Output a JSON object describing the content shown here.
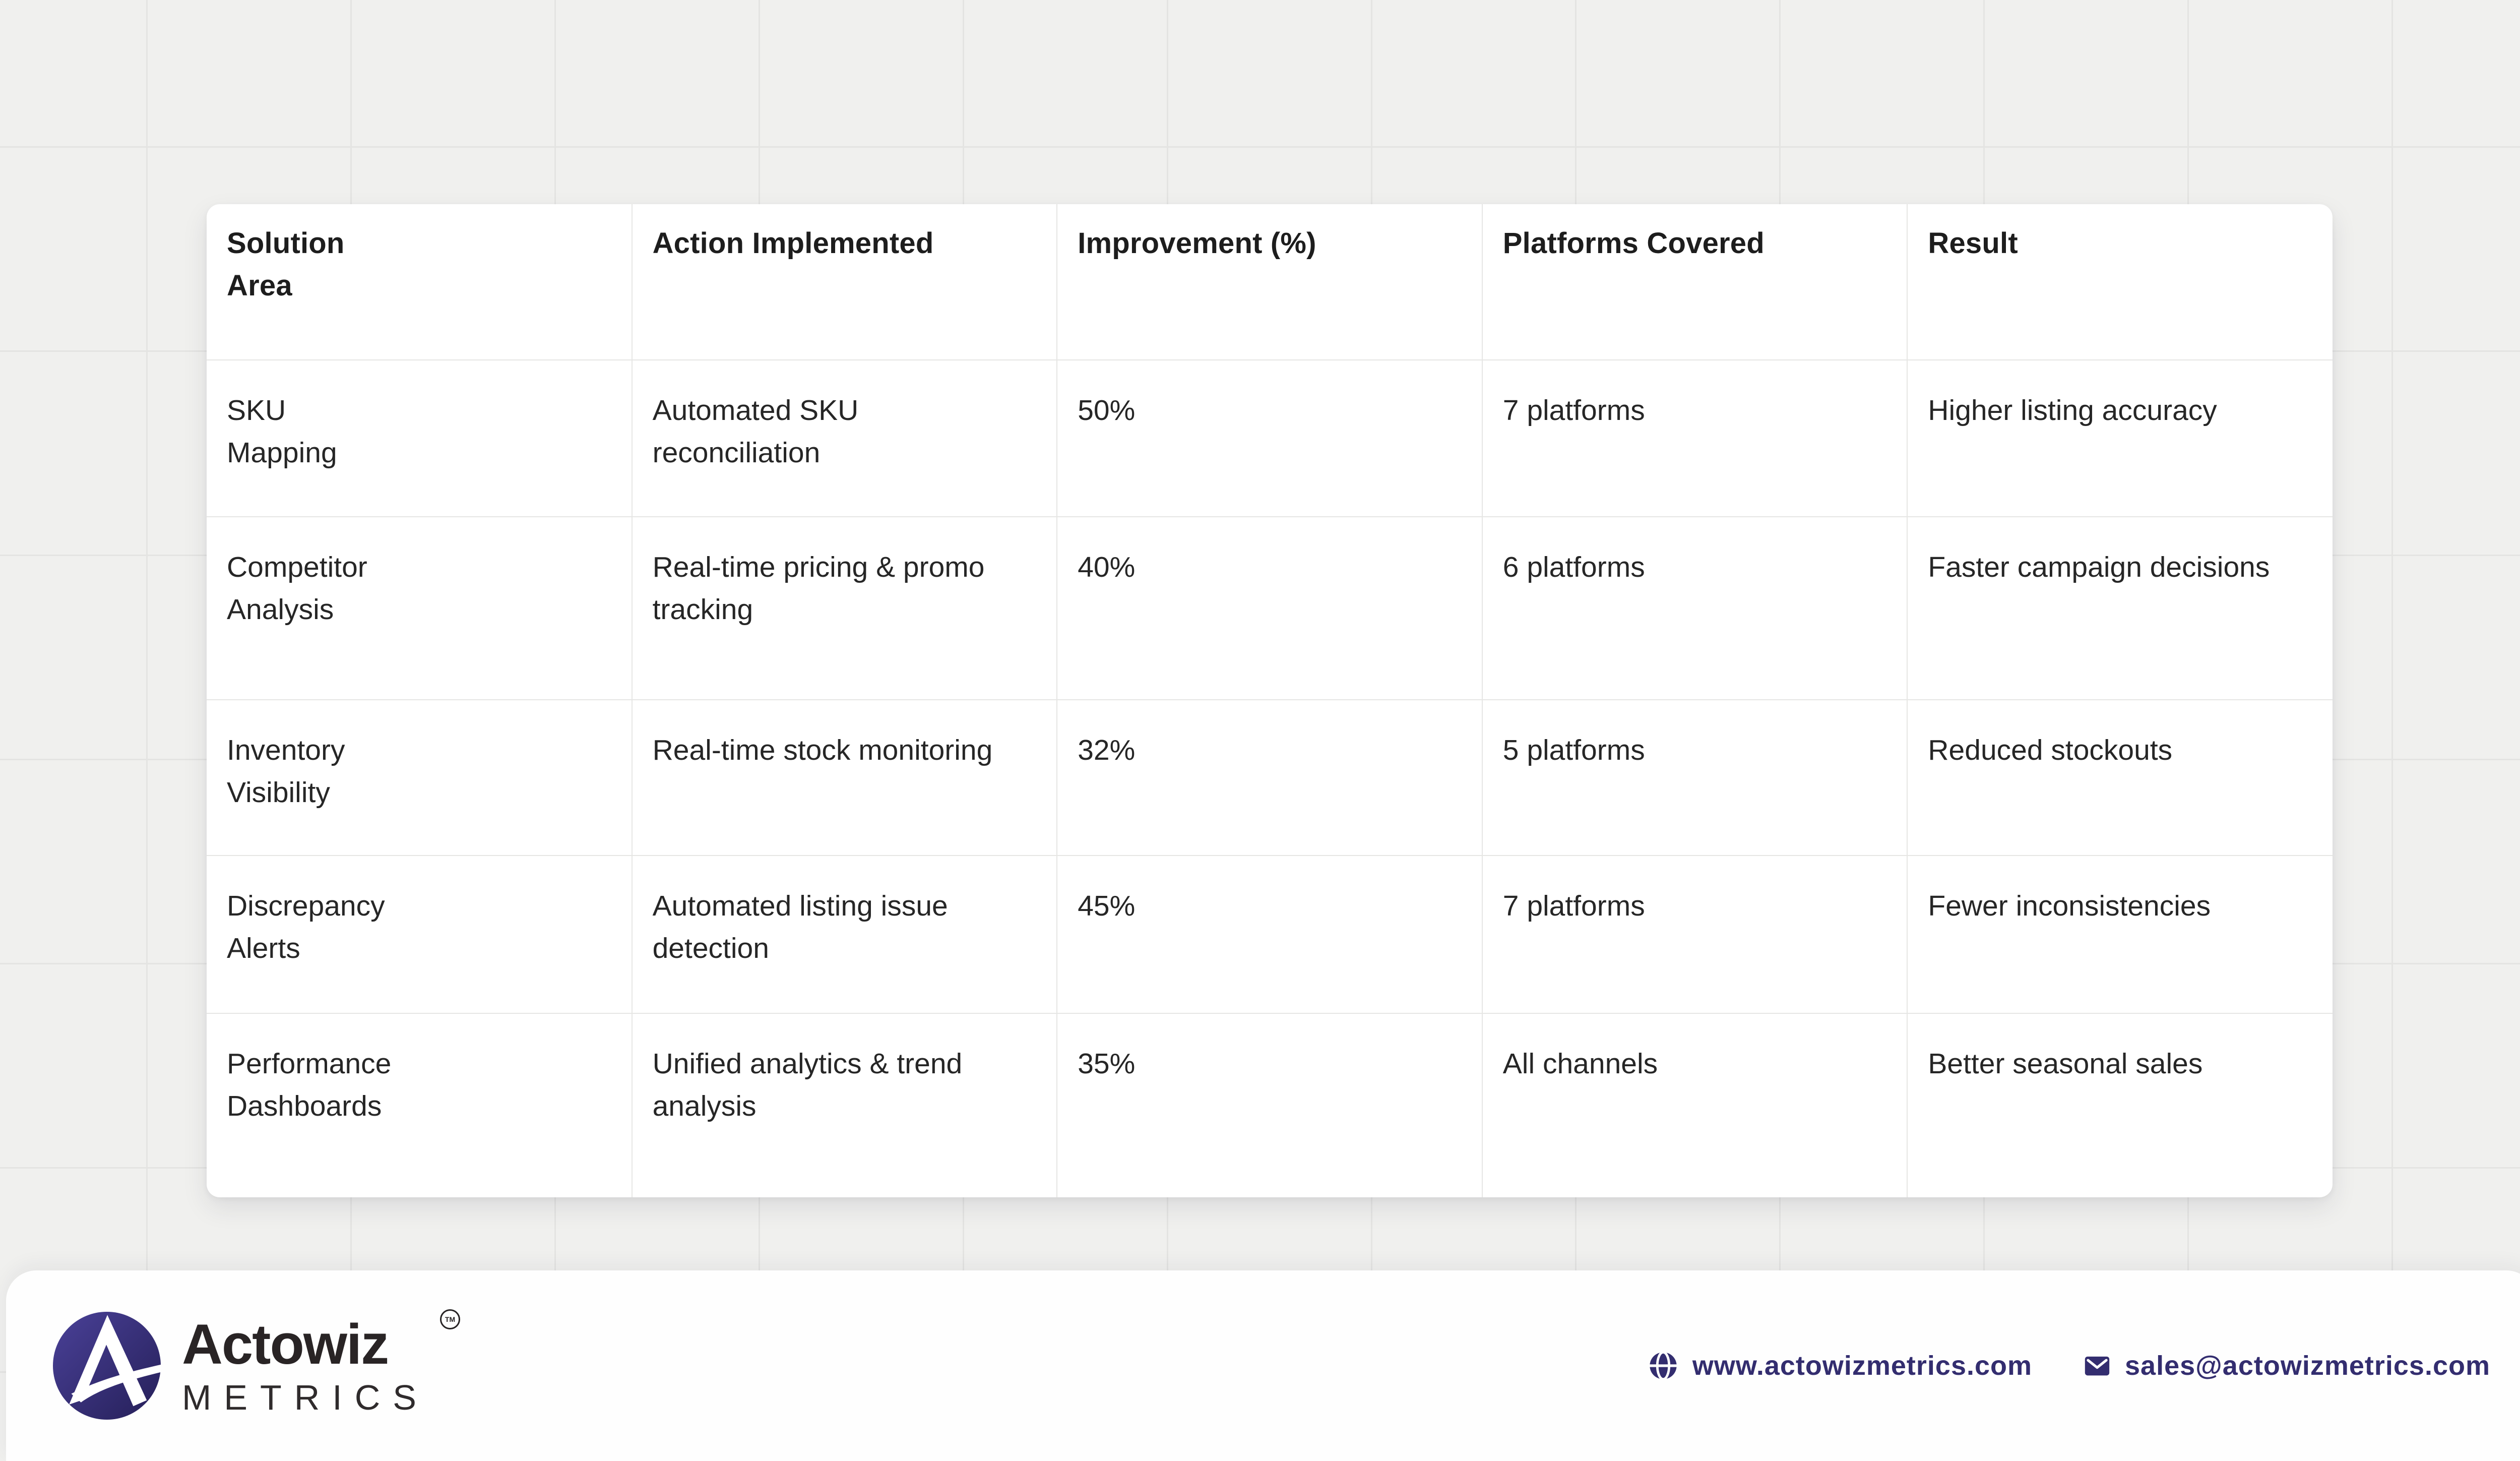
{
  "table": {
    "columns": [
      "Solution\n Area",
      "Action Implemented",
      "Improvement (%)",
      "Platforms Covered",
      "Result"
    ],
    "rows": [
      [
        "SKU\n Mapping",
        "Automated SKU\nreconciliation",
        "50%",
        "7 platforms",
        "Higher listing accuracy"
      ],
      [
        "Competitor\n Analysis",
        "Real-time pricing & promo\n tracking",
        "40%",
        "6 platforms",
        "Faster campaign decisions"
      ],
      [
        "Inventory\n Visibility",
        "Real-time stock monitoring",
        "32%",
        "5 platforms",
        "Reduced stockouts"
      ],
      [
        "Discrepancy\n Alerts",
        "Automated listing issue\ndetection",
        "45%",
        "7 platforms",
        "Fewer inconsistencies"
      ],
      [
        "Performance\n Dashboards",
        "Unified analytics & trend\n analysis",
        "35%",
        "All channels",
        "Better seasonal sales"
      ]
    ]
  },
  "chart_data": {
    "type": "table",
    "columns": [
      "Solution Area",
      "Action Implemented",
      "Improvement (%)",
      "Platforms Covered",
      "Result"
    ],
    "rows": [
      [
        "SKU Mapping",
        "Automated SKU reconciliation",
        50,
        "7 platforms",
        "Higher listing accuracy"
      ],
      [
        "Competitor Analysis",
        "Real-time pricing & promo tracking",
        40,
        "6 platforms",
        "Faster campaign decisions"
      ],
      [
        "Inventory Visibility",
        "Real-time stock monitoring",
        32,
        "5 platforms",
        "Reduced stockouts"
      ],
      [
        "Discrepancy Alerts",
        "Automated listing issue detection",
        45,
        "7 platforms",
        "Fewer inconsistencies"
      ],
      [
        "Performance Dashboards",
        "Unified analytics & trend analysis",
        35,
        "All channels",
        "Better seasonal sales"
      ]
    ]
  },
  "brand": {
    "name": "Actowiz",
    "trademark": "TM",
    "tagline": "METRICS"
  },
  "footer": {
    "website": "www.actowizmetrics.com",
    "email": "sales@actowizmetrics.com"
  },
  "colors": {
    "accent_indigo": "#332d6f",
    "logo_gradient_start": "#4a4198",
    "logo_gradient_end": "#251f58",
    "card_background": "#ffffff",
    "page_background": "#f0f0ee",
    "grid_line": "#e4e4e2",
    "table_border": "#e6e6e4",
    "text_dark": "#262626"
  }
}
